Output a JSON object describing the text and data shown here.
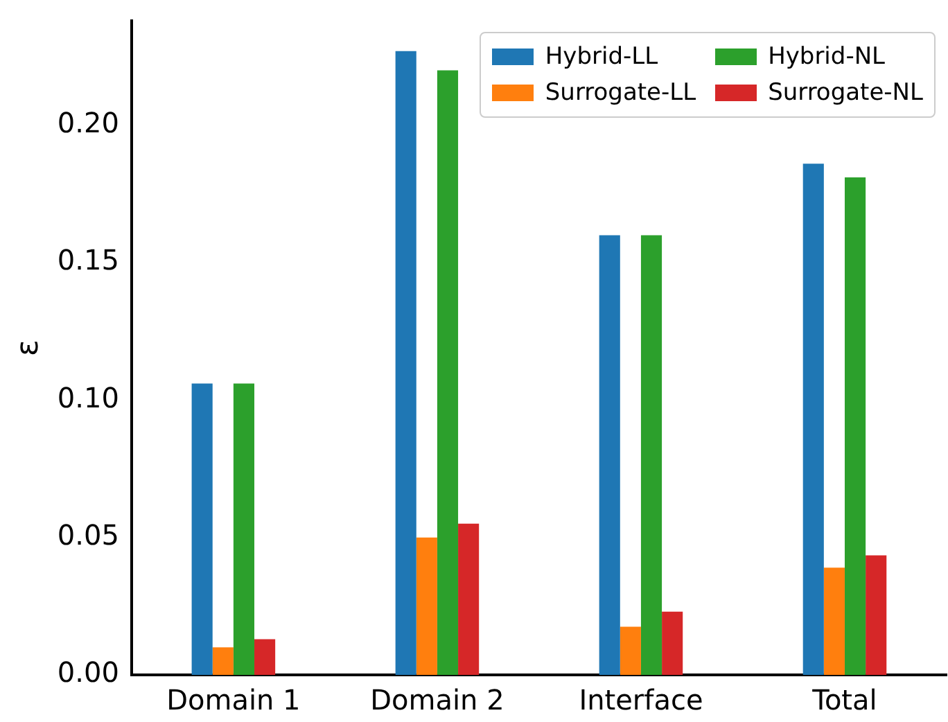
{
  "chart_data": {
    "type": "bar",
    "ylabel": "ε",
    "categories": [
      "Domain 1",
      "Domain 2",
      "Interface",
      "Total"
    ],
    "series": [
      {
        "name": "Hybrid-LL",
        "color": "#1f77b4",
        "values": [
          0.106,
          0.227,
          0.16,
          0.186
        ]
      },
      {
        "name": "Surrogate-LL",
        "color": "#ff7f0e",
        "values": [
          0.01,
          0.05,
          0.0175,
          0.039
        ]
      },
      {
        "name": "Hybrid-NL",
        "color": "#2ca02c",
        "values": [
          0.106,
          0.22,
          0.16,
          0.181
        ]
      },
      {
        "name": "Surrogate-NL",
        "color": "#d62728",
        "values": [
          0.013,
          0.055,
          0.023,
          0.0435
        ]
      }
    ],
    "ylim": [
      0,
      0.238
    ],
    "yticks": [
      {
        "value": 0,
        "label": "0.00"
      },
      0.05,
      {
        "value": 0.1,
        "label": "0.10"
      },
      0.15,
      {
        "value": 0.2,
        "label": "0.20"
      }
    ],
    "grid": false,
    "legend": "top right"
  }
}
